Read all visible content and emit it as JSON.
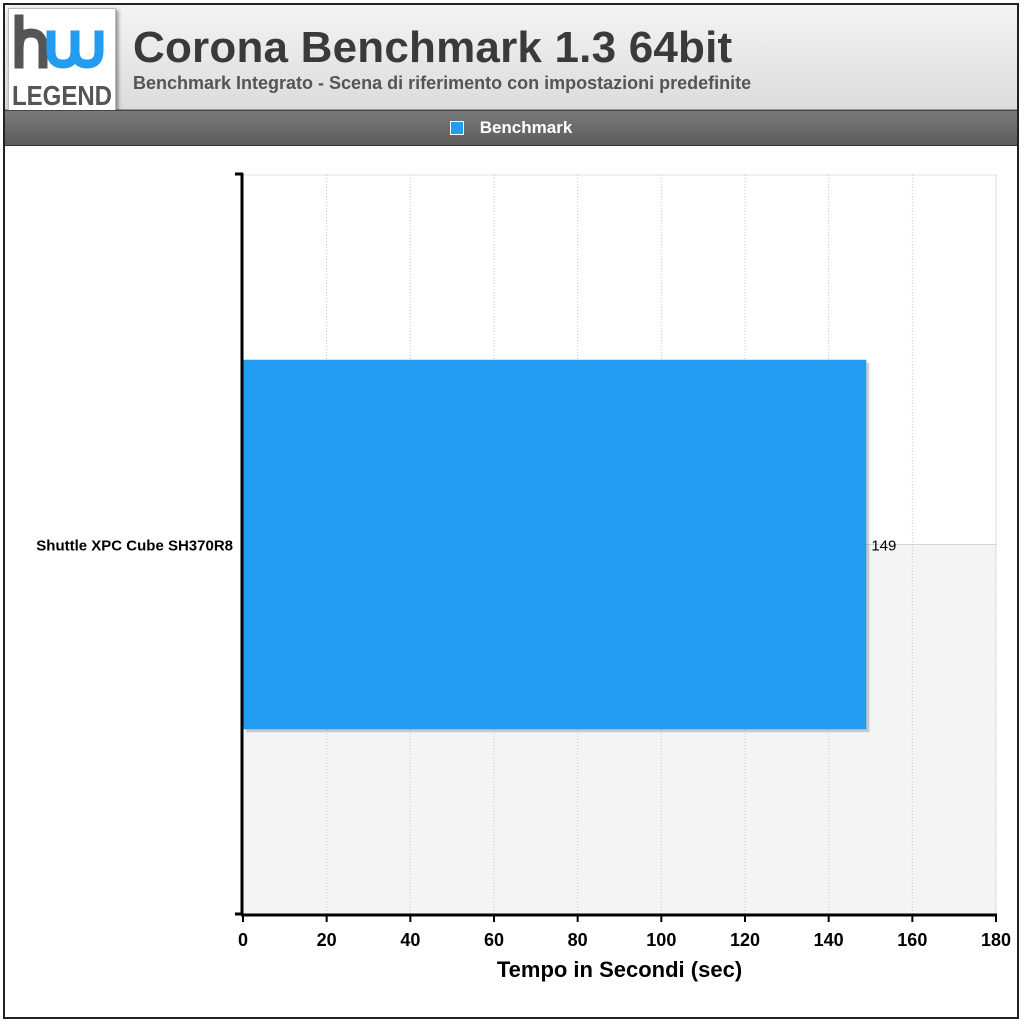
{
  "header": {
    "title": "Corona Benchmark 1.3 64bit",
    "subtitle": "Benchmark Integrato - Scena di riferimento con impostazioni predefinite"
  },
  "logo": {
    "icon": "hwlegend-logo",
    "text_top": "hw",
    "text_bottom": "LEGEND",
    "colors": {
      "accent": "#229cf0",
      "dark": "#555555"
    }
  },
  "colors": {
    "bar": "#229cf0",
    "header_band": "#6b6b6b",
    "plot_band": "#f4f4f4",
    "axis": "#000000"
  },
  "chart_data": {
    "type": "bar",
    "orientation": "horizontal",
    "title": "Corona Benchmark 1.3 64bit",
    "subtitle": "Benchmark Integrato - Scena di riferimento con impostazioni predefinite",
    "categories": [
      "Shuttle XPC Cube SH370R8"
    ],
    "series": [
      {
        "name": "Benchmark",
        "values": [
          149
        ],
        "color": "#229cf0"
      }
    ],
    "data_labels": [
      "149"
    ],
    "xlabel": "Tempo in Secondi (sec)",
    "ylabel": "",
    "xlim": [
      0,
      180
    ],
    "xticks": [
      0,
      20,
      40,
      60,
      80,
      100,
      120,
      140,
      160,
      180
    ],
    "grid": "vertical-dotted",
    "legend_position": "top"
  }
}
